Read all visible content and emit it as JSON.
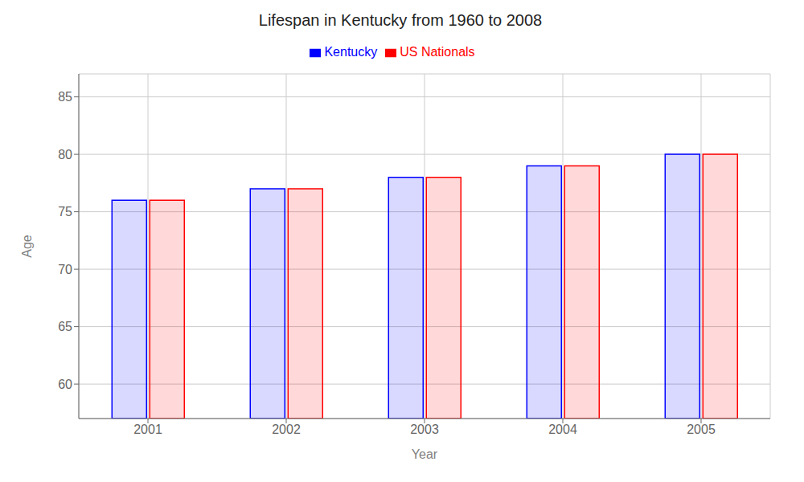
{
  "chart_data": {
    "type": "bar",
    "title": "Lifespan in Kentucky from 1960 to 2008",
    "x_label": "Year",
    "y_label": "Age",
    "categories": [
      "2001",
      "2002",
      "2003",
      "2004",
      "2005"
    ],
    "series": [
      {
        "name": "Kentucky",
        "color": "#0000ff",
        "values": [
          76,
          77,
          78,
          79,
          80
        ]
      },
      {
        "name": "US Nationals",
        "color": "#ff0000",
        "values": [
          76,
          77,
          78,
          79,
          80
        ]
      }
    ],
    "ylim": [
      57,
      87
    ],
    "yticks": [
      60,
      65,
      70,
      75,
      80,
      85
    ],
    "grid": true,
    "legend": "top"
  }
}
